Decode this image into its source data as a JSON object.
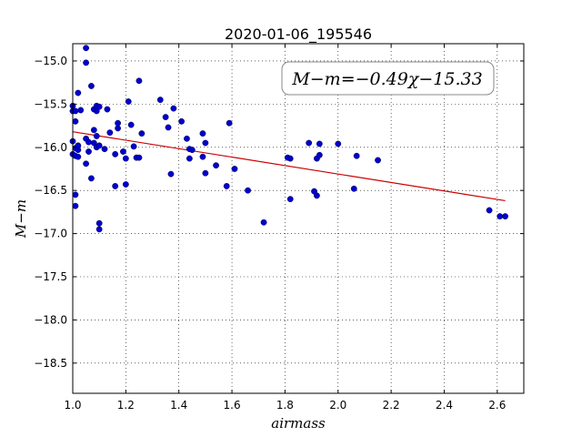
{
  "chart_data": {
    "type": "scatter",
    "title": "2020-01-06_195546",
    "xlabel": "airmass",
    "ylabel": "M−m",
    "xlim": [
      1.0,
      2.7
    ],
    "ylim": [
      -14.8,
      -18.85
    ],
    "y_inverted": true,
    "grid": true,
    "x_ticks": [
      1.0,
      1.2,
      1.4,
      1.6,
      1.8,
      2.0,
      2.2,
      2.4,
      2.6
    ],
    "x_tick_labels": [
      "1.0",
      "1.2",
      "1.4",
      "1.6",
      "1.8",
      "2.0",
      "2.2",
      "2.4",
      "2.6"
    ],
    "y_ticks": [
      -15.0,
      -15.5,
      -16.0,
      -16.5,
      -17.0,
      -17.5,
      -18.0,
      -18.5
    ],
    "y_tick_labels": [
      "−15.0",
      "−15.5",
      "−16.0",
      "−16.5",
      "−17.0",
      "−17.5",
      "−18.0",
      "−18.5"
    ],
    "annotation": "M−m=−0.49χ−15.33",
    "colors": {
      "points": "#0000cc",
      "fit_line": "#cc0000"
    },
    "fit": {
      "slope": -0.49,
      "intercept": -15.33,
      "x_range": [
        1.0,
        2.63
      ]
    },
    "series": [
      {
        "points": [
          [
            1.0,
            -15.52
          ],
          [
            1.0,
            -15.58
          ],
          [
            1.0,
            -15.93
          ],
          [
            1.0,
            -16.08
          ],
          [
            1.01,
            -15.58
          ],
          [
            1.01,
            -15.7
          ],
          [
            1.01,
            -16.68
          ],
          [
            1.01,
            -16.01
          ],
          [
            1.01,
            -16.1
          ],
          [
            1.01,
            -16.55
          ],
          [
            1.02,
            -16.03
          ],
          [
            1.02,
            -16.11
          ],
          [
            1.02,
            -15.98
          ],
          [
            1.02,
            -15.37
          ],
          [
            1.03,
            -15.57
          ],
          [
            1.05,
            -16.19
          ],
          [
            1.05,
            -15.9
          ],
          [
            1.05,
            -15.02
          ],
          [
            1.05,
            -14.85
          ],
          [
            1.06,
            -15.94
          ],
          [
            1.06,
            -16.05
          ],
          [
            1.07,
            -15.29
          ],
          [
            1.07,
            -16.36
          ],
          [
            1.08,
            -15.95
          ],
          [
            1.08,
            -15.56
          ],
          [
            1.08,
            -15.8
          ],
          [
            1.09,
            -15.52
          ],
          [
            1.09,
            -15.58
          ],
          [
            1.09,
            -15.87
          ],
          [
            1.09,
            -16.0
          ],
          [
            1.1,
            -15.53
          ],
          [
            1.1,
            -15.98
          ],
          [
            1.1,
            -16.95
          ],
          [
            1.1,
            -16.88
          ],
          [
            1.12,
            -16.02
          ],
          [
            1.13,
            -15.56
          ],
          [
            1.14,
            -15.83
          ],
          [
            1.16,
            -16.45
          ],
          [
            1.16,
            -16.08
          ],
          [
            1.17,
            -15.78
          ],
          [
            1.17,
            -15.72
          ],
          [
            1.19,
            -16.05
          ],
          [
            1.2,
            -16.13
          ],
          [
            1.2,
            -16.43
          ],
          [
            1.21,
            -15.47
          ],
          [
            1.22,
            -15.74
          ],
          [
            1.23,
            -15.99
          ],
          [
            1.24,
            -16.12
          ],
          [
            1.25,
            -16.12
          ],
          [
            1.25,
            -15.23
          ],
          [
            1.26,
            -15.84
          ],
          [
            1.33,
            -15.45
          ],
          [
            1.35,
            -15.65
          ],
          [
            1.36,
            -15.77
          ],
          [
            1.37,
            -16.31
          ],
          [
            1.38,
            -15.55
          ],
          [
            1.41,
            -15.7
          ],
          [
            1.43,
            -15.9
          ],
          [
            1.44,
            -16.13
          ],
          [
            1.44,
            -16.02
          ],
          [
            1.45,
            -16.03
          ],
          [
            1.49,
            -16.11
          ],
          [
            1.49,
            -15.84
          ],
          [
            1.5,
            -15.95
          ],
          [
            1.5,
            -16.3
          ],
          [
            1.54,
            -16.21
          ],
          [
            1.58,
            -16.45
          ],
          [
            1.59,
            -15.72
          ],
          [
            1.61,
            -16.25
          ],
          [
            1.66,
            -16.5
          ],
          [
            1.72,
            -16.87
          ],
          [
            1.81,
            -16.12
          ],
          [
            1.82,
            -16.6
          ],
          [
            1.82,
            -16.13
          ],
          [
            1.89,
            -15.95
          ],
          [
            1.91,
            -16.51
          ],
          [
            1.92,
            -16.56
          ],
          [
            1.92,
            -16.13
          ],
          [
            1.93,
            -16.09
          ],
          [
            1.93,
            -15.96
          ],
          [
            2.0,
            -15.96
          ],
          [
            2.06,
            -16.48
          ],
          [
            2.07,
            -16.1
          ],
          [
            2.15,
            -16.15
          ],
          [
            2.57,
            -16.73
          ],
          [
            2.61,
            -16.8
          ],
          [
            2.63,
            -16.8
          ]
        ]
      }
    ]
  }
}
